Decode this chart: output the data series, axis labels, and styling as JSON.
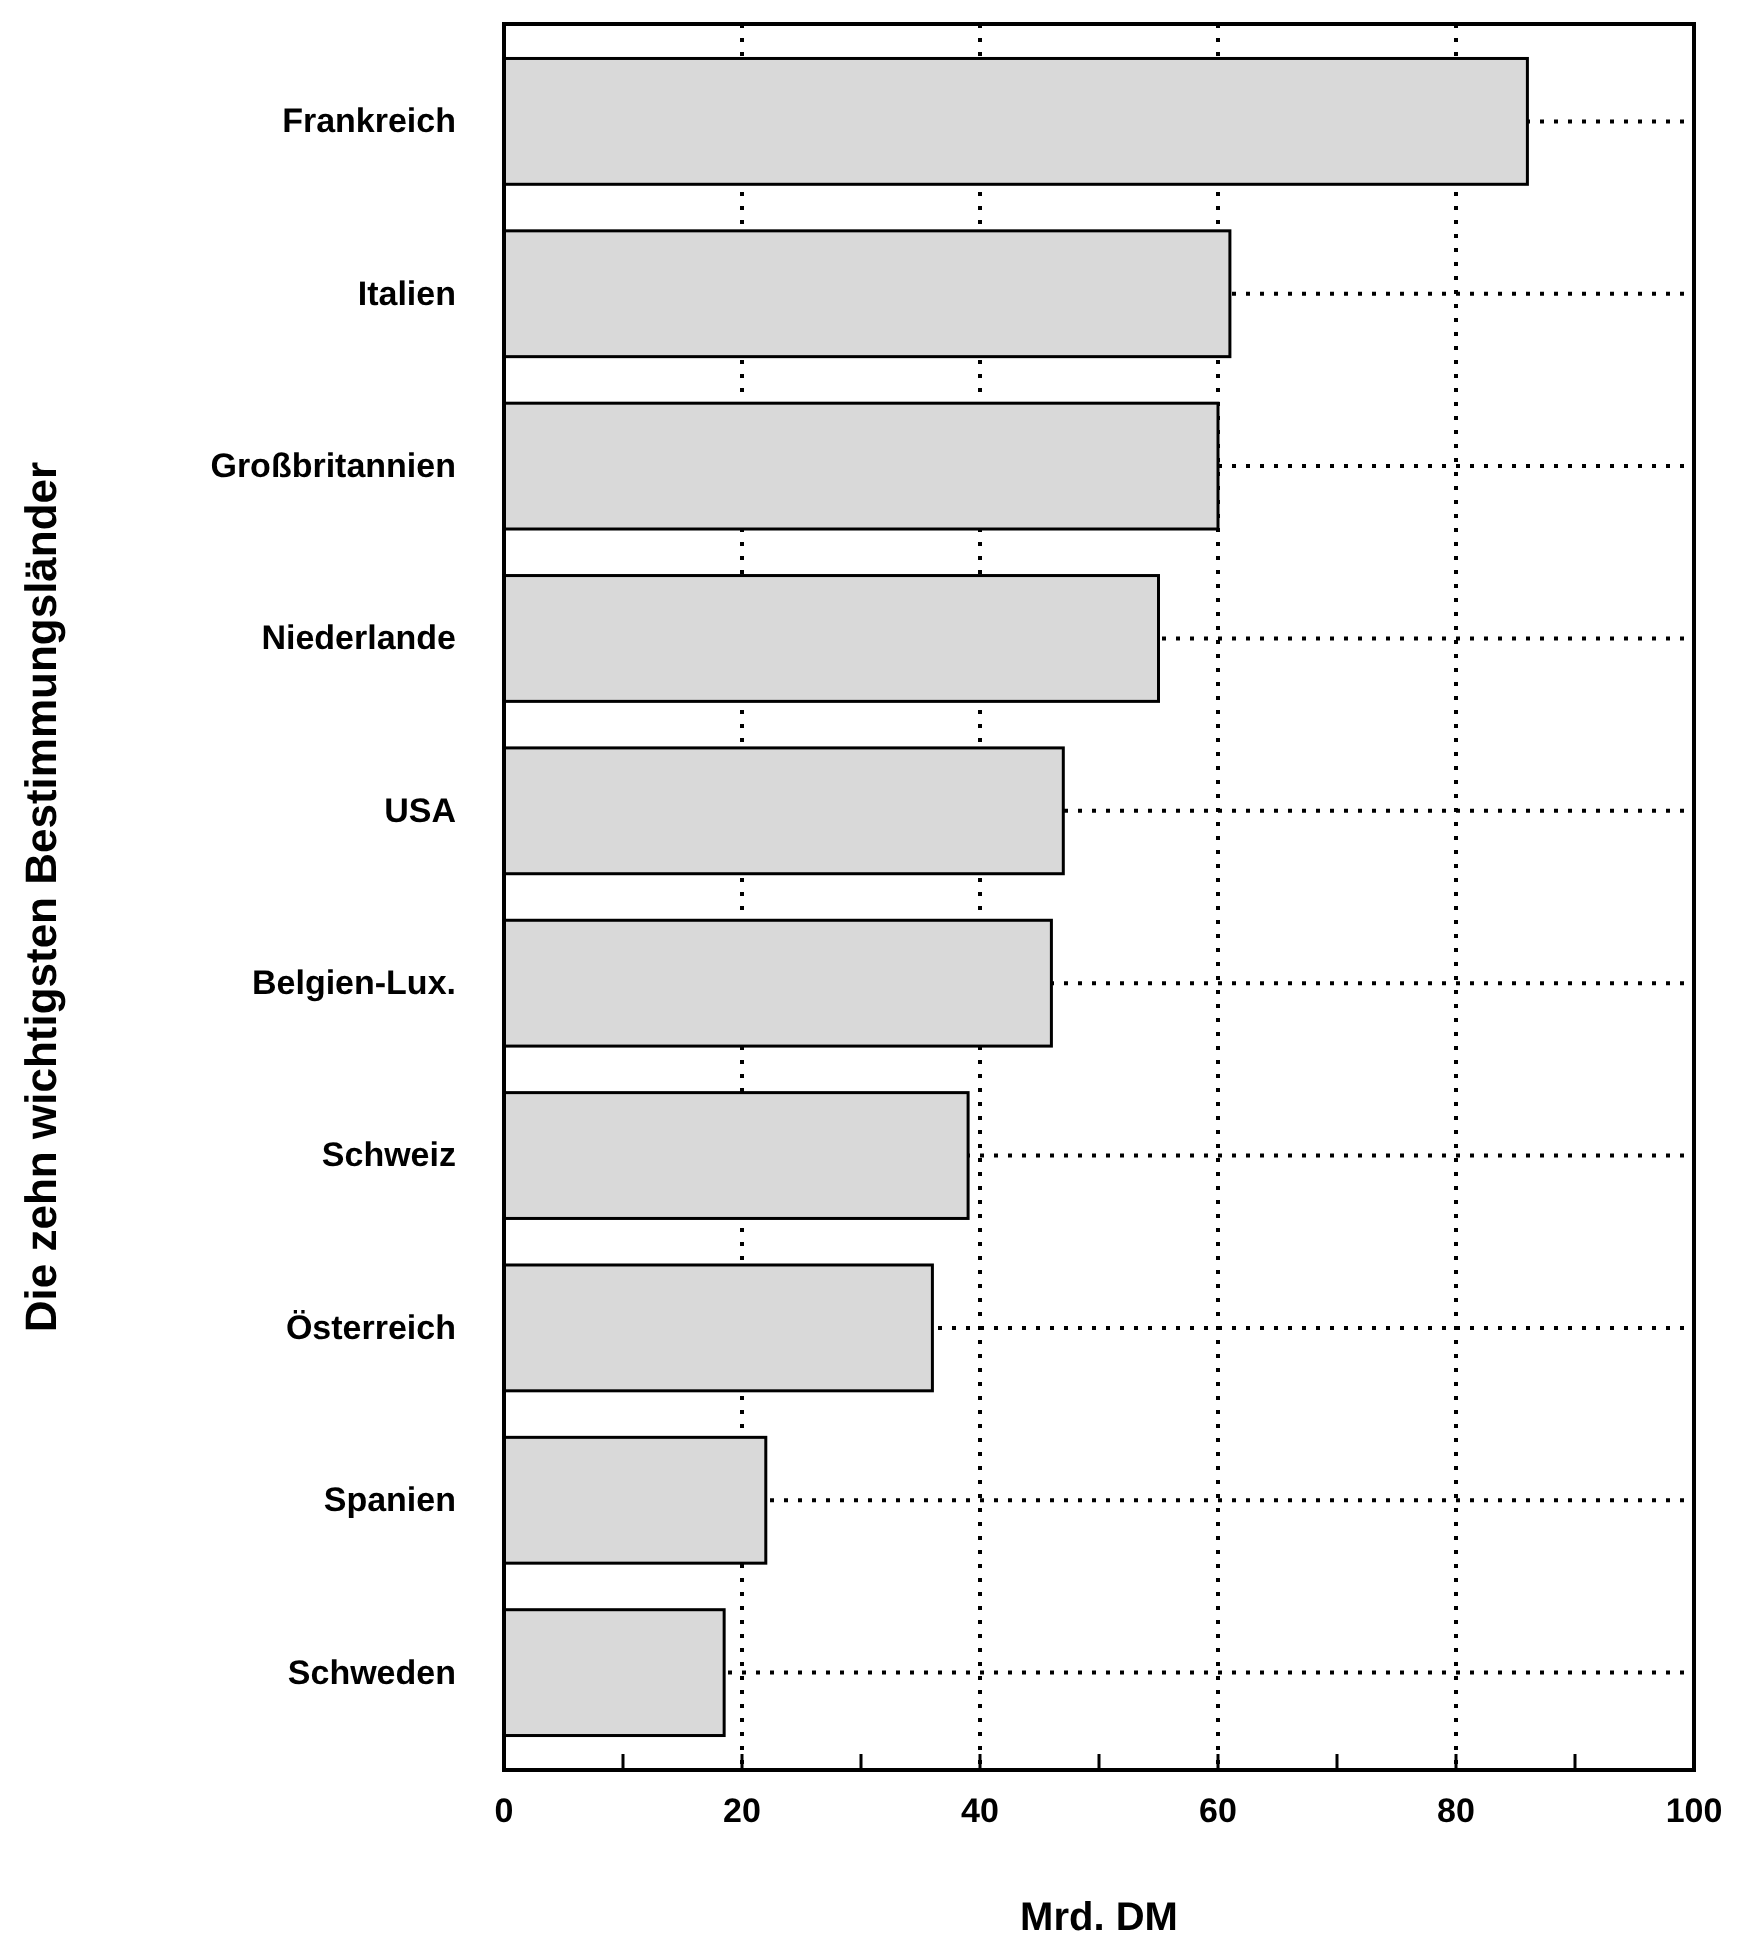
{
  "chart_data": {
    "type": "bar",
    "orientation": "horizontal",
    "ylabel": "Die zehn wichtigsten Bestimmungsländer",
    "xlabel": "Mrd. DM",
    "categories": [
      "Frankreich",
      "Italien",
      "Großbritannien",
      "Niederlande",
      "USA",
      "Belgien-Lux.",
      "Schweiz",
      "Österreich",
      "Spanien",
      "Schweden"
    ],
    "values": [
      86,
      61,
      60,
      55,
      47,
      46,
      39,
      36,
      22,
      18.5
    ],
    "color": "#d9d9d9",
    "xlim": [
      0,
      100
    ],
    "xticks": [
      0,
      {
        "value": 10,
        "label": null
      },
      20,
      {
        "value": 30,
        "label": null
      },
      40,
      {
        "value": 50,
        "label": null
      },
      60,
      {
        "value": 70,
        "label": null
      },
      80,
      {
        "value": 90,
        "label": null
      },
      100
    ],
    "grid": true
  }
}
